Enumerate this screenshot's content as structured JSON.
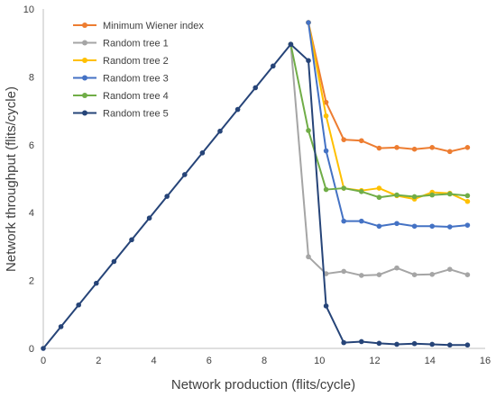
{
  "chart_data": {
    "type": "line",
    "title": "",
    "xlabel": "Network production (flits/cycle)",
    "ylabel": "Network throughput (flits/cycle)",
    "xlim": [
      0,
      16
    ],
    "ylim": [
      0,
      10
    ],
    "xticks": [
      0,
      2,
      4,
      6,
      8,
      10,
      12,
      14,
      16
    ],
    "yticks": [
      0,
      2,
      4,
      6,
      8,
      10
    ],
    "grid": false,
    "legend_position": "top-left",
    "series": [
      {
        "name": "Minimum Wiener index",
        "color": "#ED7D31",
        "points": [
          [
            9.6,
            9.6
          ],
          [
            10.24,
            7.25
          ],
          [
            10.88,
            6.15
          ],
          [
            11.52,
            6.12
          ],
          [
            12.16,
            5.9
          ],
          [
            12.8,
            5.92
          ],
          [
            13.44,
            5.87
          ],
          [
            14.08,
            5.92
          ],
          [
            14.72,
            5.8
          ],
          [
            15.36,
            5.92
          ]
        ]
      },
      {
        "name": "Random tree 1",
        "color": "#A5A5A5",
        "points": [
          [
            8.96,
            8.96
          ],
          [
            9.6,
            2.7
          ],
          [
            10.24,
            2.2
          ],
          [
            10.88,
            2.27
          ],
          [
            11.52,
            2.15
          ],
          [
            12.16,
            2.17
          ],
          [
            12.8,
            2.37
          ],
          [
            13.44,
            2.17
          ],
          [
            14.08,
            2.18
          ],
          [
            14.72,
            2.33
          ],
          [
            15.36,
            2.17
          ]
        ]
      },
      {
        "name": "Random tree 2",
        "color": "#FFC000",
        "points": [
          [
            9.6,
            9.6
          ],
          [
            10.24,
            6.85
          ],
          [
            10.88,
            4.72
          ],
          [
            11.52,
            4.65
          ],
          [
            12.16,
            4.72
          ],
          [
            12.8,
            4.5
          ],
          [
            13.44,
            4.4
          ],
          [
            14.08,
            4.6
          ],
          [
            14.72,
            4.57
          ],
          [
            15.36,
            4.33
          ]
        ]
      },
      {
        "name": "Random tree 3",
        "color": "#4472C4",
        "points": [
          [
            9.6,
            9.6
          ],
          [
            10.24,
            5.82
          ],
          [
            10.88,
            3.75
          ],
          [
            11.52,
            3.75
          ],
          [
            12.16,
            3.6
          ],
          [
            12.8,
            3.68
          ],
          [
            13.44,
            3.6
          ],
          [
            14.08,
            3.6
          ],
          [
            14.72,
            3.58
          ],
          [
            15.36,
            3.63
          ]
        ]
      },
      {
        "name": "Random tree 4",
        "color": "#70AD47",
        "points": [
          [
            8.96,
            8.96
          ],
          [
            9.6,
            6.42
          ],
          [
            10.24,
            4.68
          ],
          [
            10.88,
            4.72
          ],
          [
            11.52,
            4.62
          ],
          [
            12.16,
            4.45
          ],
          [
            12.8,
            4.52
          ],
          [
            13.44,
            4.47
          ],
          [
            14.08,
            4.52
          ],
          [
            14.72,
            4.55
          ],
          [
            15.36,
            4.5
          ]
        ]
      },
      {
        "name": "Random tree 5",
        "color": "#264478",
        "points": [
          [
            0,
            0
          ],
          [
            0.64,
            0.64
          ],
          [
            1.28,
            1.28
          ],
          [
            1.92,
            1.92
          ],
          [
            2.56,
            2.56
          ],
          [
            3.2,
            3.2
          ],
          [
            3.84,
            3.84
          ],
          [
            4.48,
            4.48
          ],
          [
            5.12,
            5.12
          ],
          [
            5.76,
            5.76
          ],
          [
            6.4,
            6.4
          ],
          [
            7.04,
            7.04
          ],
          [
            7.68,
            7.68
          ],
          [
            8.32,
            8.32
          ],
          [
            8.96,
            8.96
          ],
          [
            9.6,
            8.48
          ],
          [
            10.24,
            1.25
          ],
          [
            10.88,
            0.17
          ],
          [
            11.52,
            0.2
          ],
          [
            12.16,
            0.15
          ],
          [
            12.8,
            0.12
          ],
          [
            13.44,
            0.14
          ],
          [
            14.08,
            0.12
          ],
          [
            14.72,
            0.1
          ],
          [
            15.36,
            0.1
          ]
        ]
      }
    ]
  }
}
